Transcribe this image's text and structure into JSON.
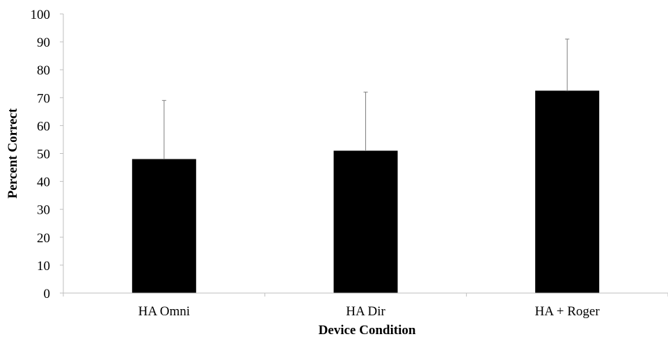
{
  "chart_data": {
    "type": "bar",
    "categories": [
      "HA Omni",
      "HA Dir",
      "HA + Roger"
    ],
    "values": [
      48,
      51,
      72.5
    ],
    "error_plus": [
      21,
      21,
      18.5
    ],
    "bar_color": "#000000",
    "error_color": "#7f7f7f",
    "axis_color": "#bfbfbf",
    "xlabel": "Device Condition",
    "ylabel": "Percent Correct",
    "ylim": [
      0,
      100
    ],
    "yticks": [
      0,
      10,
      20,
      30,
      40,
      50,
      60,
      70,
      80,
      90,
      100
    ],
    "grid": false,
    "legend": "none"
  }
}
